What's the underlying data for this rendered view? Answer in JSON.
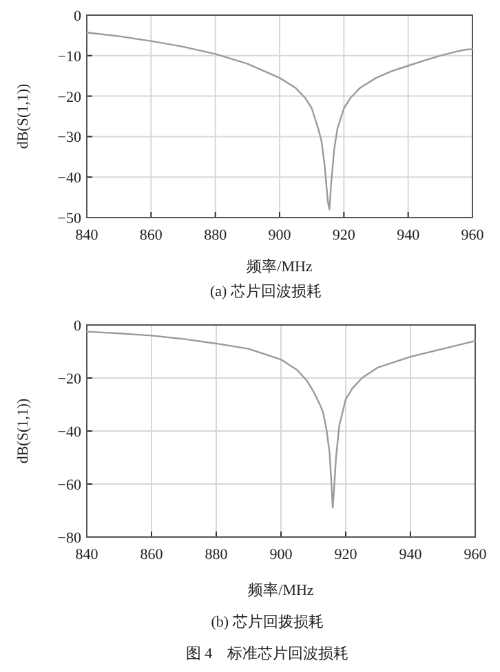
{
  "chart_data": [
    {
      "type": "line",
      "xlabel": "频率/MHz",
      "ylabel": "dB(S(1,1))",
      "annotations": [
        "(a) 芯片回波损耗"
      ],
      "color": "#9a9a9a",
      "grid": true,
      "x": [
        840,
        850,
        860,
        870,
        880,
        890,
        900,
        905,
        908,
        910,
        912,
        913,
        914,
        915,
        915.5,
        916,
        917,
        918,
        920,
        922,
        925,
        930,
        935,
        940,
        945,
        950,
        955,
        958,
        960
      ],
      "values": [
        -4.3,
        -5.2,
        -6.4,
        -7.8,
        -9.6,
        -12,
        -15.5,
        -18,
        -20.5,
        -23,
        -28,
        -31,
        -37,
        -46,
        -48,
        -42,
        -33,
        -28,
        -23,
        -20.5,
        -18,
        -15.5,
        -13.8,
        -12.5,
        -11.2,
        -10,
        -9,
        -8.5,
        -8.4
      ],
      "xlim": [
        840,
        960
      ],
      "ylim": [
        -50,
        0
      ],
      "xticks": [
        840,
        860,
        880,
        900,
        920,
        940,
        960
      ],
      "yticks": [
        0,
        -10,
        -20,
        -30,
        -40,
        -50
      ]
    },
    {
      "type": "line",
      "xlabel": "频率/MHz",
      "ylabel": "dB(S(1,1))",
      "annotations": [
        "(b) 芯片回拨损耗",
        "图 4　标准芯片回波损耗"
      ],
      "color": "#9a9a9a",
      "grid": true,
      "x": [
        840,
        850,
        860,
        870,
        880,
        890,
        900,
        905,
        908,
        910,
        912,
        913,
        914,
        915,
        915.5,
        916,
        916.5,
        917,
        918,
        920,
        922,
        925,
        930,
        935,
        940,
        945,
        950,
        955,
        960
      ],
      "values": [
        -2.5,
        -3.2,
        -4,
        -5.3,
        -7,
        -9,
        -13,
        -17,
        -21,
        -25,
        -30,
        -33,
        -39,
        -48,
        -58,
        -69,
        -60,
        -50,
        -38,
        -28,
        -24,
        -20,
        -16,
        -14,
        -12,
        -10.5,
        -9,
        -7.5,
        -6
      ],
      "xlim": [
        840,
        960
      ],
      "ylim": [
        -80,
        0
      ],
      "xticks": [
        840,
        860,
        880,
        900,
        920,
        940,
        960
      ],
      "yticks": [
        0,
        -20,
        -40,
        -60,
        -80
      ]
    }
  ]
}
